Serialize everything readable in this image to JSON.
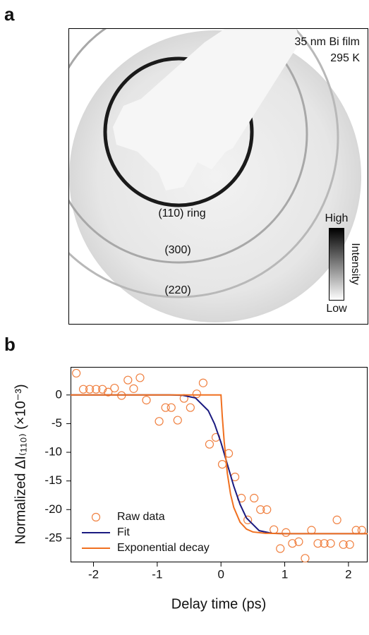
{
  "panel_a": {
    "label": "a",
    "title": "35 nm Bi film",
    "subtitle": "295 K",
    "ring_labels": [
      "(110) ring",
      "(300)",
      "(220)"
    ],
    "colorbar": {
      "high": "High",
      "low": "Low",
      "label": "Intensity"
    }
  },
  "chart_data": {
    "type": "line",
    "label": "b",
    "xlabel": "Delay time (ps)",
    "ylabel": "Normalized ΔI₍₁₁₀₎ (×10⁻³)",
    "xlim": [
      -2.36,
      2.3
    ],
    "ylim": [
      -29.2,
      4.9
    ],
    "xticks": [
      -2,
      -1,
      0,
      1,
      2
    ],
    "yticks": [
      0,
      -5,
      -10,
      -15,
      -20,
      -25
    ],
    "legend": "lower left",
    "series": [
      {
        "name": "Raw data",
        "type": "scatter",
        "color": "#f08040",
        "x": [
          -2.27,
          -2.16,
          -2.06,
          -1.96,
          -1.86,
          -1.77,
          -1.67,
          -1.56,
          -1.46,
          -1.37,
          -1.27,
          -1.17,
          -0.97,
          -0.87,
          -0.78,
          -0.68,
          -0.58,
          -0.48,
          -0.38,
          -0.28,
          -0.18,
          -0.08,
          0.02,
          0.12,
          0.22,
          0.32,
          0.42,
          0.52,
          0.62,
          0.72,
          0.83,
          0.93,
          1.02,
          1.12,
          1.22,
          1.32,
          1.42,
          1.52,
          1.62,
          1.72,
          1.82,
          1.92,
          2.02,
          2.12,
          2.21
        ],
        "values": [
          3.8,
          1.0,
          1.0,
          1.0,
          1.0,
          0.5,
          1.2,
          -0.1,
          2.6,
          1.1,
          3.0,
          -0.9,
          -4.6,
          -2.2,
          -2.2,
          -4.4,
          -0.6,
          -2.2,
          0.2,
          2.1,
          -8.6,
          -7.4,
          -12.1,
          -10.2,
          -14.3,
          -18.0,
          -21.8,
          -18.0,
          -20.0,
          -20.0,
          -23.5,
          -26.8,
          -24.0,
          -25.9,
          -25.6,
          -28.5,
          -23.6,
          -25.9,
          -25.9,
          -25.9,
          -21.8,
          -26.1,
          -26.1,
          -23.6,
          -23.6
        ]
      },
      {
        "name": "Fit",
        "type": "line",
        "color": "#1a1a80",
        "x": [
          -2.36,
          -0.8,
          -0.6,
          -0.4,
          -0.2,
          -0.1,
          0,
          0.1,
          0.2,
          0.3,
          0.4,
          0.6,
          0.8,
          1.0,
          2.3
        ],
        "values": [
          0,
          0,
          -0.06,
          -0.52,
          -2.73,
          -5.07,
          -8.3,
          -12.1,
          -15.9,
          -19.1,
          -21.47,
          -23.68,
          -24.14,
          -24.2,
          -24.2
        ]
      },
      {
        "name": "Exponential decay",
        "type": "line",
        "color": "#f07020",
        "x": [
          -2.36,
          0,
          0.02,
          0.05,
          0.1,
          0.15,
          0.2,
          0.3,
          0.4,
          0.5,
          0.7,
          1.0,
          2.3
        ],
        "values": [
          0,
          0,
          -3.7,
          -8.1,
          -13.7,
          -17.3,
          -19.6,
          -22.2,
          -23.4,
          -23.9,
          -24.13,
          -24.2,
          -24.2
        ]
      }
    ]
  }
}
